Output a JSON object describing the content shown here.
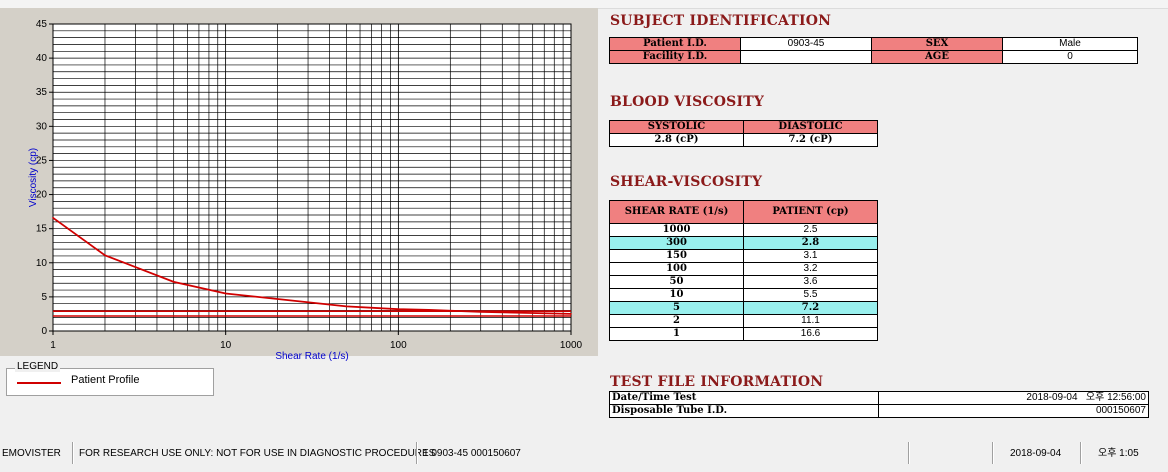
{
  "chart_data": {
    "type": "line",
    "xscale": "log",
    "xlim": [
      1,
      1000
    ],
    "ylim": [
      0,
      45
    ],
    "xlabel": "Shear Rate (1/s)",
    "ylabel": "Viscosity (cp)",
    "xticks": [
      1,
      10,
      100,
      1000
    ],
    "yticks": [
      0,
      5,
      10,
      15,
      20,
      25,
      30,
      35,
      40,
      45
    ],
    "grid": true,
    "series": [
      {
        "name": "Patient Profile",
        "color": "#d00000",
        "x": [
          1,
          2,
          5,
          10,
          50,
          100,
          150,
          300,
          1000
        ],
        "y": [
          16.6,
          11.1,
          7.2,
          5.5,
          3.6,
          3.2,
          3.1,
          2.8,
          2.5
        ]
      }
    ],
    "reference_lines": [
      {
        "y": 2.2,
        "color": "#d00000"
      },
      {
        "y": 2.9,
        "color": "#d00000"
      }
    ]
  },
  "legend": {
    "title": "LEGEND",
    "items": [
      {
        "label": "Patient Profile",
        "color": "#d00000"
      }
    ]
  },
  "subject": {
    "title": "SUBJECT IDENTIFICATION",
    "patient_id_label": "Patient I.D.",
    "patient_id": "0903-45",
    "sex_label": "SEX",
    "sex": "Male",
    "facility_id_label": "Facility I.D.",
    "facility_id": "",
    "age_label": "AGE",
    "age": "0"
  },
  "blood_viscosity": {
    "title": "BLOOD VISCOSITY",
    "systolic_label": "SYSTOLIC",
    "systolic": "2.8 (cP)",
    "diastolic_label": "DIASTOLIC",
    "diastolic": "7.2 (cP)"
  },
  "shear_viscosity": {
    "title": "SHEAR-VISCOSITY",
    "col_shear": "SHEAR RATE (1/s)",
    "col_patient": "PATIENT (cp)",
    "rows": [
      {
        "rate": "1000",
        "cp": "2.5",
        "hl": false
      },
      {
        "rate": "300",
        "cp": "2.8",
        "hl": true
      },
      {
        "rate": "150",
        "cp": "3.1",
        "hl": false
      },
      {
        "rate": "100",
        "cp": "3.2",
        "hl": false
      },
      {
        "rate": "50",
        "cp": "3.6",
        "hl": false
      },
      {
        "rate": "10",
        "cp": "5.5",
        "hl": false
      },
      {
        "rate": "5",
        "cp": "7.2",
        "hl": true
      },
      {
        "rate": "2",
        "cp": "11.1",
        "hl": false
      },
      {
        "rate": "1",
        "cp": "16.6",
        "hl": false
      }
    ]
  },
  "test_file": {
    "title": "TEST FILE INFORMATION",
    "datetime_label": "Date/Time Test",
    "datetime": "2018-09-04   오후 12:56:00",
    "tube_label": "Disposable Tube I.D.",
    "tube": "000150607"
  },
  "status": {
    "app": "EMOVISTER",
    "notice": "FOR RESEARCH USE ONLY: NOT FOR USE IN DIAGNOSTIC PROCEDURES",
    "record": "1  0903-45  000150607",
    "date": "2018-09-04",
    "time": "오후 1:05"
  }
}
